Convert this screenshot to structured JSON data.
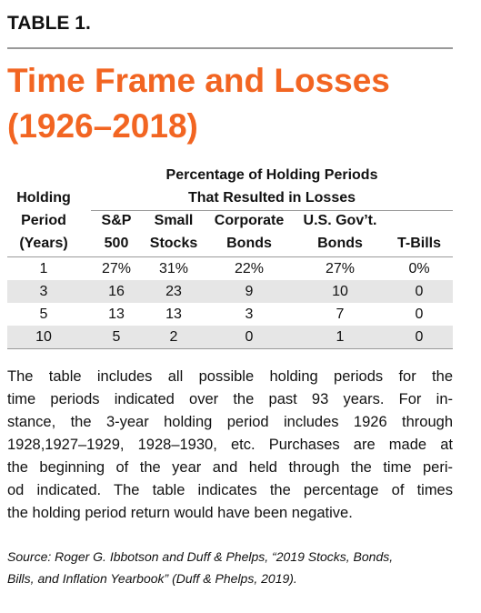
{
  "label": "TABLE 1.",
  "title_lines": [
    "Time Frame and Losses",
    "(1926–2018)"
  ],
  "table": {
    "group_header_lines": [
      "Percentage of Holding Periods",
      "That Resulted in Losses"
    ],
    "columns": [
      [
        "Holding",
        "Period",
        "(Years)"
      ],
      [
        "S&P",
        "500"
      ],
      [
        "Small",
        "Stocks"
      ],
      [
        "Corporate",
        "Bonds"
      ],
      [
        "U.S. Gov’t.",
        "Bonds"
      ],
      [
        "T-Bills"
      ]
    ],
    "rows": [
      [
        "1",
        "27%",
        "31%",
        "22%",
        "27%",
        "0%"
      ],
      [
        "3",
        "16",
        "23",
        "9",
        "10",
        "0"
      ],
      [
        "5",
        "13",
        "13",
        "3",
        "7",
        "0"
      ],
      [
        "10",
        "5",
        "2",
        "0",
        "1",
        "0"
      ]
    ]
  },
  "note_lines": [
    "The table includes all possible holding periods for the",
    "time periods indicated over the past 93 years. For in-",
    "stance, the 3-year holding period includes 1926 through",
    "1928,1927–1929, 1928–1930, etc. Purchases are made at",
    "the beginning of the year and held through the time peri-",
    "od indicated. The table indicates the percentage of times",
    "the holding period return would have been negative."
  ],
  "source_lines": [
    "Source: Roger G. Ibbotson and Duff & Phelps, “2019 Stocks, Bonds,",
    "Bills, and Inflation Yearbook” (Duff & Phelps, 2019)."
  ]
}
